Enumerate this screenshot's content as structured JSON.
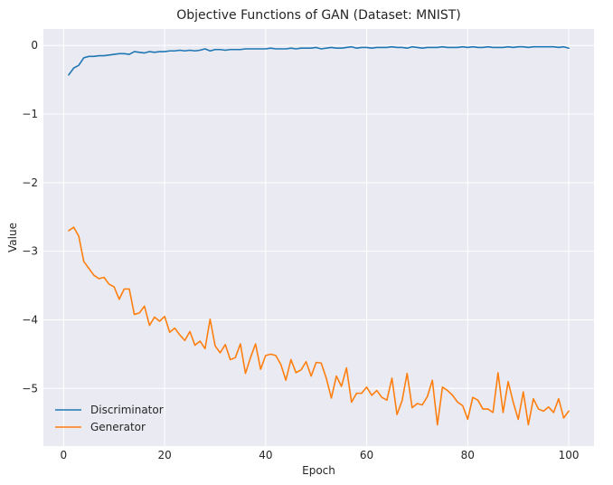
{
  "chart_data": {
    "type": "line",
    "title": "Objective Functions of GAN (Dataset: MNIST)",
    "xlabel": "Epoch",
    "ylabel": "Value",
    "xlim": [
      -4,
      105
    ],
    "ylim": [
      -5.84,
      0.24
    ],
    "xticks": [
      0,
      20,
      40,
      60,
      80,
      100
    ],
    "yticks": [
      0,
      -1,
      -2,
      -3,
      -4,
      -5
    ],
    "ytick_labels": [
      "0",
      "−1",
      "−2",
      "−3",
      "−4",
      "−5"
    ],
    "grid": true,
    "legend_position": "lower-left",
    "x": [
      1,
      2,
      3,
      4,
      5,
      6,
      7,
      8,
      9,
      10,
      11,
      12,
      13,
      14,
      15,
      16,
      17,
      18,
      19,
      20,
      21,
      22,
      23,
      24,
      25,
      26,
      27,
      28,
      29,
      30,
      31,
      32,
      33,
      34,
      35,
      36,
      37,
      38,
      39,
      40,
      41,
      42,
      43,
      44,
      45,
      46,
      47,
      48,
      49,
      50,
      51,
      52,
      53,
      54,
      55,
      56,
      57,
      58,
      59,
      60,
      61,
      62,
      63,
      64,
      65,
      66,
      67,
      68,
      69,
      70,
      71,
      72,
      73,
      74,
      75,
      76,
      77,
      78,
      79,
      80,
      81,
      82,
      83,
      84,
      85,
      86,
      87,
      88,
      89,
      90,
      91,
      92,
      93,
      94,
      95,
      96,
      97,
      98,
      99,
      100
    ],
    "series": [
      {
        "name": "Discriminator",
        "color": "#1f77b4",
        "values": [
          -0.43,
          -0.33,
          -0.29,
          -0.18,
          -0.16,
          -0.16,
          -0.15,
          -0.15,
          -0.14,
          -0.13,
          -0.12,
          -0.12,
          -0.13,
          -0.09,
          -0.1,
          -0.11,
          -0.09,
          -0.1,
          -0.09,
          -0.09,
          -0.08,
          -0.08,
          -0.07,
          -0.08,
          -0.07,
          -0.08,
          -0.07,
          -0.05,
          -0.08,
          -0.06,
          -0.06,
          -0.07,
          -0.06,
          -0.06,
          -0.06,
          -0.05,
          -0.05,
          -0.05,
          -0.05,
          -0.05,
          -0.04,
          -0.05,
          -0.05,
          -0.05,
          -0.04,
          -0.05,
          -0.04,
          -0.04,
          -0.04,
          -0.03,
          -0.05,
          -0.04,
          -0.03,
          -0.04,
          -0.04,
          -0.03,
          -0.02,
          -0.04,
          -0.03,
          -0.03,
          -0.04,
          -0.03,
          -0.03,
          -0.03,
          -0.02,
          -0.03,
          -0.03,
          -0.04,
          -0.02,
          -0.03,
          -0.04,
          -0.03,
          -0.03,
          -0.03,
          -0.02,
          -0.03,
          -0.03,
          -0.03,
          -0.02,
          -0.03,
          -0.02,
          -0.03,
          -0.03,
          -0.02,
          -0.03,
          -0.03,
          -0.03,
          -0.02,
          -0.03,
          -0.02,
          -0.02,
          -0.03,
          -0.02,
          -0.02,
          -0.02,
          -0.02,
          -0.02,
          -0.03,
          -0.02,
          -0.04
        ]
      },
      {
        "name": "Generator",
        "color": "#ff7f0e",
        "values": [
          -2.7,
          -2.65,
          -2.78,
          -3.15,
          -3.25,
          -3.35,
          -3.4,
          -3.38,
          -3.48,
          -3.52,
          -3.7,
          -3.55,
          -3.55,
          -3.92,
          -3.9,
          -3.8,
          -4.08,
          -3.96,
          -4.02,
          -3.95,
          -4.18,
          -4.12,
          -4.22,
          -4.3,
          -4.17,
          -4.37,
          -4.31,
          -4.42,
          -3.99,
          -4.38,
          -4.48,
          -4.36,
          -4.58,
          -4.55,
          -4.35,
          -4.78,
          -4.55,
          -4.35,
          -4.72,
          -4.52,
          -4.5,
          -4.52,
          -4.65,
          -4.88,
          -4.58,
          -4.77,
          -4.73,
          -4.61,
          -4.82,
          -4.62,
          -4.63,
          -4.85,
          -5.14,
          -4.82,
          -4.97,
          -4.7,
          -5.2,
          -5.07,
          -5.07,
          -4.98,
          -5.1,
          -5.03,
          -5.13,
          -5.17,
          -4.85,
          -5.38,
          -5.18,
          -4.78,
          -5.28,
          -5.22,
          -5.24,
          -5.12,
          -4.88,
          -5.53,
          -4.98,
          -5.03,
          -5.1,
          -5.2,
          -5.25,
          -5.45,
          -5.13,
          -5.17,
          -5.3,
          -5.3,
          -5.35,
          -4.77,
          -5.35,
          -4.9,
          -5.2,
          -5.45,
          -5.05,
          -5.53,
          -5.15,
          -5.3,
          -5.33,
          -5.27,
          -5.35,
          -5.15,
          -5.43,
          -5.33
        ]
      }
    ]
  }
}
